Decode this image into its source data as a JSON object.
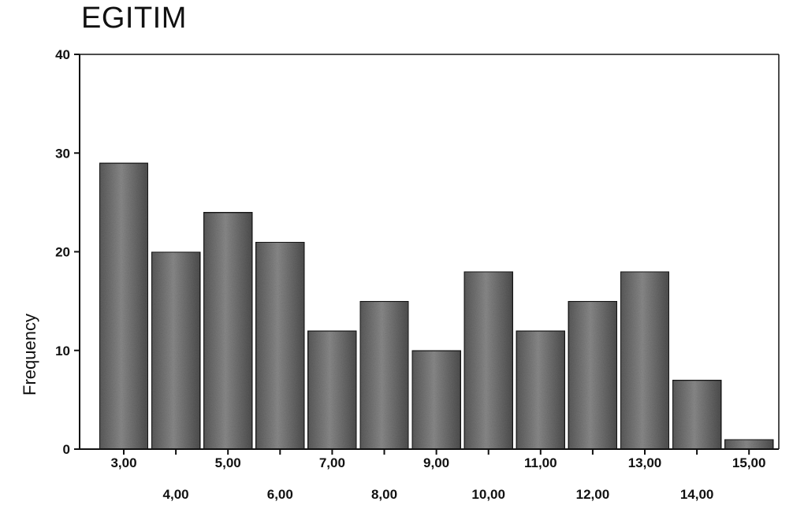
{
  "chart_data": {
    "type": "bar",
    "title": "EGITIM",
    "xlabel": "",
    "ylabel": "Frequency",
    "ylim": [
      0,
      40
    ],
    "yticks": [
      0,
      10,
      20,
      30,
      40
    ],
    "categories": [
      "3,00",
      "4,00",
      "5,00",
      "6,00",
      "7,00",
      "8,00",
      "9,00",
      "10,00",
      "11,00",
      "12,00",
      "13,00",
      "14,00",
      "15,00"
    ],
    "values": [
      29,
      20,
      24,
      21,
      12,
      15,
      10,
      18,
      12,
      15,
      18,
      7,
      1
    ],
    "grid": false,
    "legend": "none",
    "bar_color": "#6f6f6f"
  }
}
